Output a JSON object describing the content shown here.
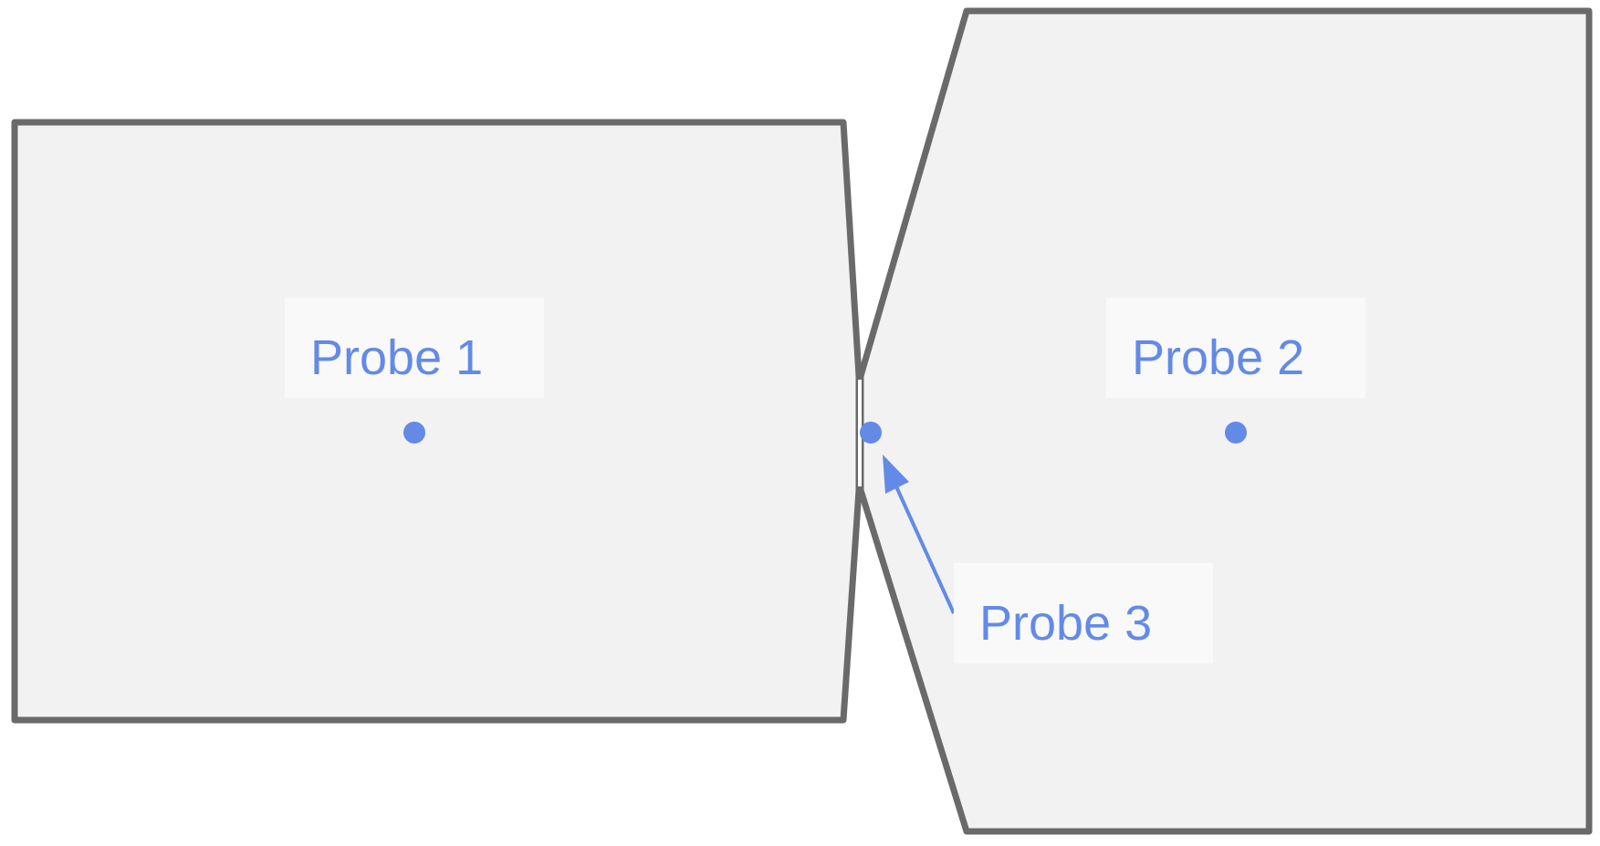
{
  "colors": {
    "background": "#ffffff",
    "shape_fill": "#f2f2f2",
    "shape_stroke": "#6a6a6a",
    "label_box_fill": "#f9f9f9",
    "probe_color": "#638ae6"
  },
  "shapes": [
    {
      "id": "left-block",
      "icon": "polygon"
    },
    {
      "id": "right-block",
      "icon": "polygon"
    }
  ],
  "probes": [
    {
      "id": "probe-1",
      "label": "Probe 1"
    },
    {
      "id": "probe-2",
      "label": "Probe 2"
    },
    {
      "id": "probe-3",
      "label": "Probe 3"
    }
  ]
}
